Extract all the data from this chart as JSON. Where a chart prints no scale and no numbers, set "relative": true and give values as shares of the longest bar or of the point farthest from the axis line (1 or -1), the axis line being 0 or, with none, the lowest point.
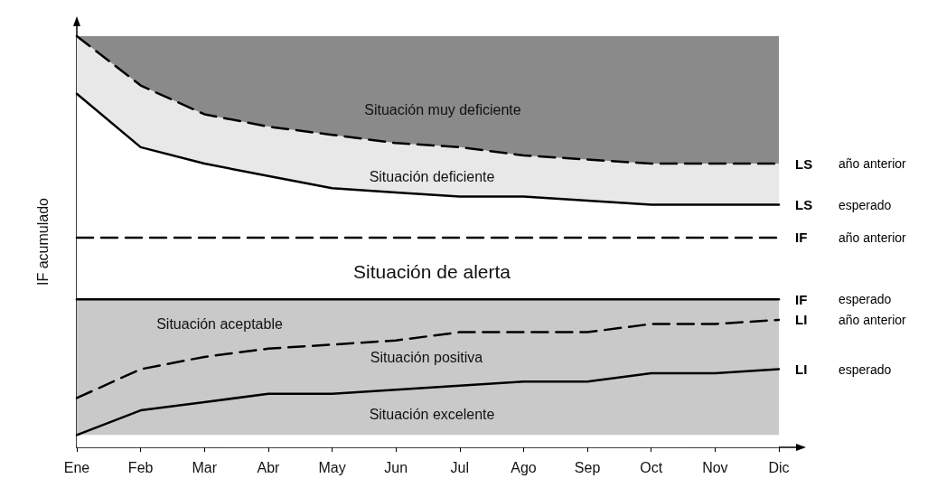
{
  "chart_data": {
    "type": "line",
    "relative": true,
    "ylabel": "IF acumulado",
    "categories": [
      "Ene",
      "Feb",
      "Mar",
      "Abr",
      "May",
      "Jun",
      "Jul",
      "Ago",
      "Sep",
      "Oct",
      "Nov",
      "Dic"
    ],
    "series": [
      {
        "name": "LS año anterior",
        "type": "area",
        "color": "#e8e8e8",
        "line_style": "dashed",
        "values": [
          1.0,
          0.88,
          0.81,
          0.78,
          0.76,
          0.74,
          0.73,
          0.71,
          0.7,
          0.69,
          0.69,
          0.69
        ]
      },
      {
        "name": "LS esperado",
        "type": "area",
        "color": "#ffffff",
        "line_style": "solid",
        "values": [
          0.86,
          0.73,
          0.69,
          0.66,
          0.63,
          0.62,
          0.61,
          0.61,
          0.6,
          0.59,
          0.59,
          0.59
        ]
      },
      {
        "name": "IF año anterior",
        "type": "line",
        "color": "#000000",
        "line_style": "dashed",
        "values": [
          0.51,
          0.51,
          0.51,
          0.51,
          0.51,
          0.51,
          0.51,
          0.51,
          0.51,
          0.51,
          0.51,
          0.51
        ]
      },
      {
        "name": "IF esperado",
        "type": "line",
        "color": "#000000",
        "line_style": "solid",
        "values": [
          0.36,
          0.36,
          0.36,
          0.36,
          0.36,
          0.36,
          0.36,
          0.36,
          0.36,
          0.36,
          0.36,
          0.36
        ]
      },
      {
        "name": "LI año anterior",
        "type": "line",
        "color": "#000000",
        "line_style": "dashed",
        "values": [
          0.12,
          0.19,
          0.22,
          0.24,
          0.25,
          0.26,
          0.28,
          0.28,
          0.28,
          0.3,
          0.3,
          0.31
        ]
      },
      {
        "name": "LI esperado",
        "type": "line",
        "color": "#000000",
        "line_style": "solid",
        "values": [
          0.03,
          0.09,
          0.11,
          0.13,
          0.13,
          0.14,
          0.15,
          0.16,
          0.16,
          0.18,
          0.18,
          0.19
        ]
      }
    ],
    "bands": [
      {
        "axis": "y",
        "from": 0.03,
        "to": 0.36,
        "color": "#c9c9c9"
      }
    ],
    "annotations": [
      "Situación muy deficiente",
      "Situación deficiente",
      "Situación de alerta",
      "Situación aceptable",
      "Situación positiva",
      "Situación excelente"
    ],
    "grid": false,
    "legend": false,
    "marker": "none"
  }
}
